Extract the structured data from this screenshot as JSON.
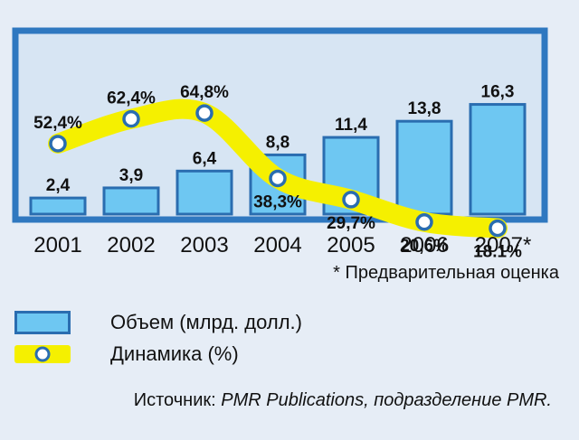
{
  "chart_data": {
    "type": "bar+line",
    "categories": [
      "2001",
      "2002",
      "2003",
      "2004",
      "2005",
      "2006",
      "2007*"
    ],
    "series": [
      {
        "name": "Объем (млрд. долл.)",
        "kind": "bar",
        "values": [
          2.4,
          3.9,
          6.4,
          8.8,
          11.4,
          13.8,
          16.3
        ],
        "labels": [
          "2,4",
          "3,9",
          "6,4",
          "8,8",
          "11,4",
          "13,8",
          "16,3"
        ],
        "color": "#6ec7f2"
      },
      {
        "name": "Динамика (%)",
        "kind": "line",
        "values": [
          52.4,
          62.4,
          64.8,
          38.3,
          29.7,
          20.6,
          18.1
        ],
        "labels": [
          "52,4%",
          "62,4%",
          "64,8%",
          "38,3%",
          "29,7%",
          "20,6%",
          "18.1%"
        ],
        "color": "#f5f000"
      }
    ],
    "colors": {
      "frame": "#2f78c0",
      "plot_bg": "#d7e5f3",
      "bar_border": "#2a6db0",
      "marker_border": "#2a6db0"
    }
  },
  "footnote": "* Предварительная оценка",
  "legend": [
    {
      "label": "Объем (млрд. долл.)"
    },
    {
      "label": "Динамика (%)"
    }
  ],
  "source": {
    "prefix": "Источник: ",
    "text": "PMR Publications, подразделение PMR."
  }
}
